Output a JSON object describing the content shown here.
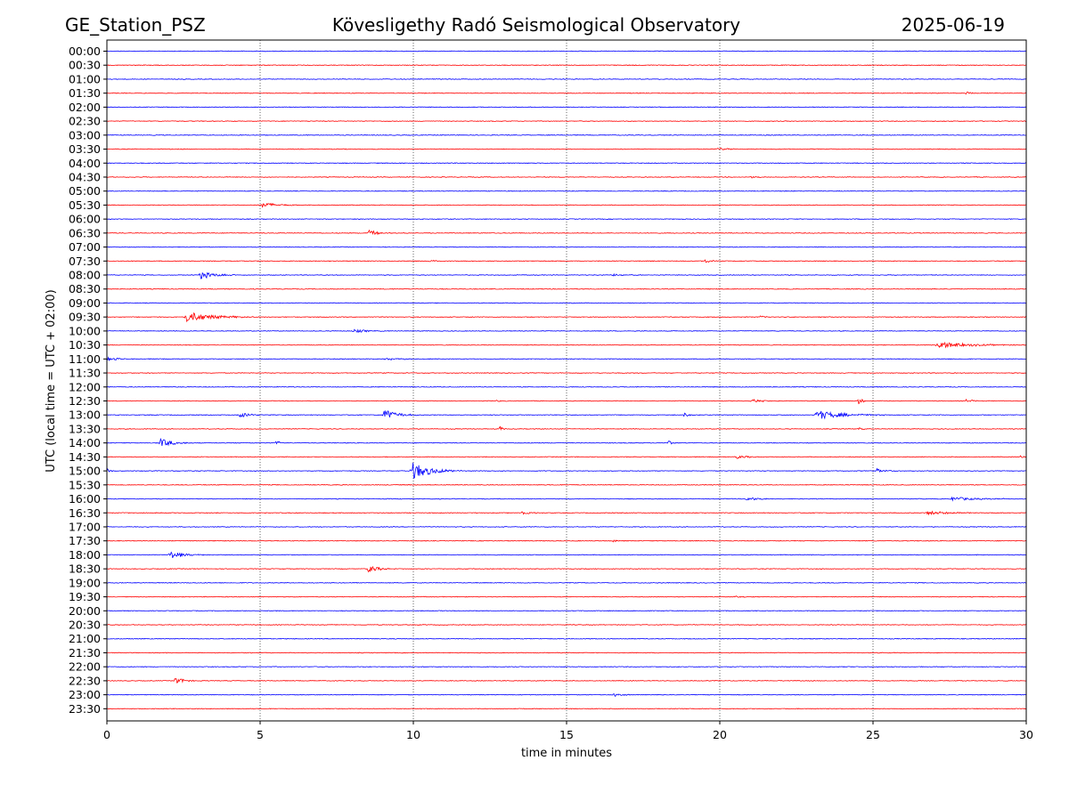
{
  "header": {
    "station": "GE_Station_PSZ",
    "observatory": "Kövesligethy Radó Seismological Observatory",
    "date": "2025-06-19"
  },
  "chart_data": {
    "type": "line",
    "xlabel": "time in minutes",
    "ylabel": "UTC (local time = UTC + 02:00)",
    "xlim": [
      0,
      30
    ],
    "xticks": [
      0,
      5,
      10,
      15,
      20,
      25,
      30
    ],
    "grid": "vertical dotted at x ticks",
    "trace_colors": [
      "#0000ff",
      "#ff0000"
    ],
    "row_labels": [
      "00:00",
      "00:30",
      "01:00",
      "01:30",
      "02:00",
      "02:30",
      "03:00",
      "03:30",
      "04:00",
      "04:30",
      "05:00",
      "05:30",
      "06:00",
      "06:30",
      "07:00",
      "07:30",
      "08:00",
      "08:30",
      "09:00",
      "09:30",
      "10:00",
      "10:30",
      "11:00",
      "11:30",
      "12:00",
      "12:30",
      "13:00",
      "13:30",
      "14:00",
      "14:30",
      "15:00",
      "15:30",
      "16:00",
      "16:30",
      "17:00",
      "17:30",
      "18:00",
      "18:30",
      "19:00",
      "19:30",
      "20:00",
      "20:30",
      "21:00",
      "21:30",
      "22:00",
      "22:30",
      "23:00",
      "23:30"
    ],
    "events": [
      {
        "row": 3,
        "start": 28,
        "duration": 0.6,
        "amp": 0.2
      },
      {
        "row": 7,
        "start": 19.9,
        "duration": 1.0,
        "amp": 0.25
      },
      {
        "row": 9,
        "start": 21,
        "duration": 0.8,
        "amp": 0.15
      },
      {
        "row": 11,
        "start": 5.0,
        "duration": 1.5,
        "amp": 0.45
      },
      {
        "row": 13,
        "start": 8.5,
        "duration": 0.9,
        "amp": 0.55
      },
      {
        "row": 15,
        "start": 19.5,
        "duration": 0.5,
        "amp": 0.35
      },
      {
        "row": 15,
        "start": 10.5,
        "duration": 1.0,
        "amp": 0.15
      },
      {
        "row": 16,
        "start": 3.0,
        "duration": 1.5,
        "amp": 0.6
      },
      {
        "row": 16,
        "start": 16.5,
        "duration": 0.8,
        "amp": 0.25
      },
      {
        "row": 19,
        "start": 2.5,
        "duration": 2.5,
        "amp": 0.85
      },
      {
        "row": 19,
        "start": 21.3,
        "duration": 0.5,
        "amp": 0.2
      },
      {
        "row": 20,
        "start": 8.0,
        "duration": 1.5,
        "amp": 0.25
      },
      {
        "row": 21,
        "start": 27.0,
        "duration": 3.0,
        "amp": 0.5
      },
      {
        "row": 22,
        "start": 0.0,
        "duration": 1.0,
        "amp": 0.3
      },
      {
        "row": 22,
        "start": 9.0,
        "duration": 1.5,
        "amp": 0.2
      },
      {
        "row": 25,
        "start": 12.5,
        "duration": 0.8,
        "amp": 0.2
      },
      {
        "row": 25,
        "start": 21.0,
        "duration": 1.0,
        "amp": 0.3
      },
      {
        "row": 25,
        "start": 24.5,
        "duration": 0.5,
        "amp": 0.45
      },
      {
        "row": 25,
        "start": 28.0,
        "duration": 0.8,
        "amp": 0.3
      },
      {
        "row": 26,
        "start": 4.3,
        "duration": 1.2,
        "amp": 0.45
      },
      {
        "row": 26,
        "start": 9.0,
        "duration": 1.2,
        "amp": 0.95
      },
      {
        "row": 26,
        "start": 18.8,
        "duration": 0.8,
        "amp": 0.3
      },
      {
        "row": 26,
        "start": 23.1,
        "duration": 2.5,
        "amp": 0.75
      },
      {
        "row": 27,
        "start": 12.8,
        "duration": 0.4,
        "amp": 0.45
      },
      {
        "row": 27,
        "start": 24.5,
        "duration": 0.5,
        "amp": 0.2
      },
      {
        "row": 28,
        "start": 1.7,
        "duration": 1.2,
        "amp": 0.75
      },
      {
        "row": 28,
        "start": 5.5,
        "duration": 0.6,
        "amp": 0.35
      },
      {
        "row": 28,
        "start": 18.3,
        "duration": 0.4,
        "amp": 0.35
      },
      {
        "row": 29,
        "start": 20.5,
        "duration": 1.0,
        "amp": 0.3
      },
      {
        "row": 29,
        "start": 29.8,
        "duration": 0.2,
        "amp": 0.4
      },
      {
        "row": 30,
        "start": 0.0,
        "duration": 0.3,
        "amp": 0.35
      },
      {
        "row": 30,
        "start": 9.9,
        "duration": 1.8,
        "amp": 1.4
      },
      {
        "row": 30,
        "start": 25.1,
        "duration": 0.8,
        "amp": 0.35
      },
      {
        "row": 31,
        "start": 10.5,
        "duration": 0.4,
        "amp": 0.15
      },
      {
        "row": 32,
        "start": 20.8,
        "duration": 1.2,
        "amp": 0.35
      },
      {
        "row": 32,
        "start": 27.5,
        "duration": 2.5,
        "amp": 0.3
      },
      {
        "row": 33,
        "start": 13.5,
        "duration": 0.6,
        "amp": 0.5
      },
      {
        "row": 33,
        "start": 26.7,
        "duration": 2.5,
        "amp": 0.3
      },
      {
        "row": 35,
        "start": 16.5,
        "duration": 0.5,
        "amp": 0.2
      },
      {
        "row": 36,
        "start": 2.0,
        "duration": 1.5,
        "amp": 0.6
      },
      {
        "row": 37,
        "start": 8.5,
        "duration": 1.0,
        "amp": 0.6
      },
      {
        "row": 39,
        "start": 20.4,
        "duration": 0.8,
        "amp": 0.2
      },
      {
        "row": 45,
        "start": 2.2,
        "duration": 0.8,
        "amp": 0.65
      },
      {
        "row": 46,
        "start": 16.5,
        "duration": 0.7,
        "amp": 0.45
      }
    ]
  }
}
